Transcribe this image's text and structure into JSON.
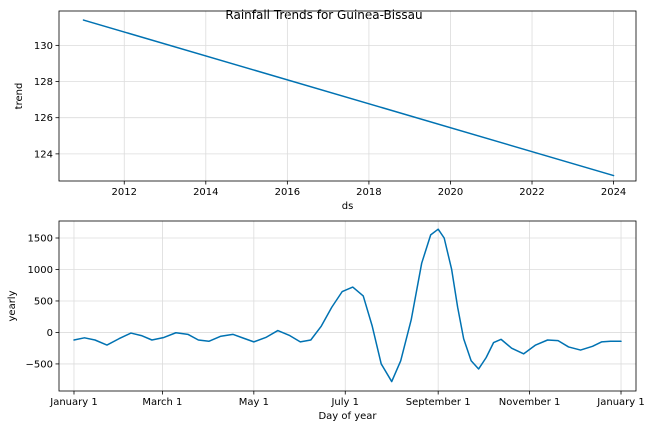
{
  "colors": {
    "series": "#0072B2",
    "grid": "#dcdcdc"
  },
  "chart_data": [
    {
      "type": "line",
      "title": "Rainfall Trends for Guinea-Bissau",
      "xlabel": "ds",
      "ylabel": "trend",
      "xlim": [
        2010.4,
        2024.55
      ],
      "ylim": [
        122.5,
        131.9
      ],
      "x_ticks": [
        2012,
        2014,
        2016,
        2018,
        2020,
        2022,
        2024
      ],
      "x_tick_labels": [
        "2012",
        "2014",
        "2016",
        "2018",
        "2020",
        "2022",
        "2024"
      ],
      "y_ticks": [
        124,
        126,
        128,
        130
      ],
      "y_tick_labels": [
        "124",
        "126",
        "128",
        "130"
      ],
      "grid": true,
      "series": [
        {
          "x": [
            2011.0,
            2024.0
          ],
          "y": [
            131.4,
            122.8
          ]
        }
      ]
    },
    {
      "type": "line",
      "xlabel": "Day of year",
      "ylabel": "yearly",
      "xlim": [
        -10,
        375
      ],
      "ylim": [
        -930,
        1770
      ],
      "x_ticks": [
        0,
        59,
        120,
        181,
        243,
        304,
        365
      ],
      "x_tick_labels": [
        "January 1",
        "March 1",
        "May 1",
        "July 1",
        "September 1",
        "November 1",
        "January 1"
      ],
      "y_ticks": [
        -500,
        0,
        500,
        1000,
        1500
      ],
      "y_tick_labels": [
        "−500",
        "0",
        "500",
        "1000",
        "1500"
      ],
      "grid": true,
      "series": [
        {
          "x": [
            0,
            7,
            14,
            22,
            30,
            38,
            45,
            52,
            60,
            68,
            76,
            83,
            90,
            98,
            106,
            113,
            120,
            128,
            136,
            144,
            151,
            158,
            165,
            172,
            179,
            186,
            193,
            199,
            205,
            212,
            218,
            225,
            232,
            238,
            243,
            247,
            252,
            256,
            260,
            265,
            270,
            275,
            280,
            285,
            292,
            300,
            308,
            316,
            323,
            330,
            338,
            346,
            352,
            358,
            365
          ],
          "y": [
            -120,
            -85,
            -120,
            -200,
            -100,
            -10,
            -50,
            -120,
            -80,
            -5,
            -30,
            -120,
            -140,
            -60,
            -30,
            -90,
            -150,
            -80,
            30,
            -50,
            -150,
            -120,
            100,
            400,
            650,
            720,
            580,
            100,
            -500,
            -780,
            -450,
            200,
            1100,
            1550,
            1640,
            1500,
            1000,
            400,
            -100,
            -450,
            -580,
            -400,
            -160,
            -110,
            -250,
            -340,
            -200,
            -120,
            -130,
            -230,
            -280,
            -220,
            -150,
            -140,
            -140
          ]
        }
      ]
    }
  ]
}
